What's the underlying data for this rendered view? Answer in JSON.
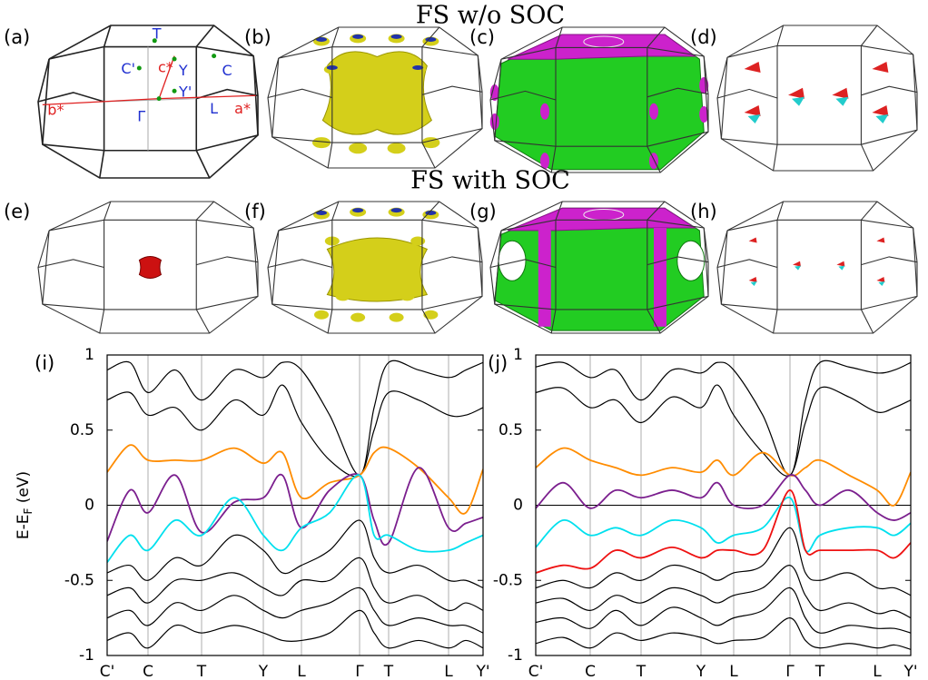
{
  "figure": {
    "titles": [
      "FS w/o SOC",
      "FS with SOC"
    ],
    "panel_labels": [
      "(a)",
      "(b)",
      "(c)",
      "(d)",
      "(e)",
      "(f)",
      "(g)",
      "(h)"
    ],
    "bz_labels": [
      "T",
      "C'",
      "c*",
      "Y",
      "C",
      "b*",
      "Y'",
      "Γ",
      "L",
      "a*"
    ]
  },
  "chart_data": [
    {
      "type": "line",
      "label": "(i)",
      "y_label": [
        "E-E",
        "F",
        " (eV)"
      ],
      "xlim": [
        0,
        4.14
      ],
      "ylim": [
        -1,
        1
      ],
      "xticks": [
        {
          "value": 0,
          "label": "C'"
        },
        {
          "value": 0.45,
          "label": "C"
        },
        {
          "value": 1.04,
          "label": "T"
        },
        {
          "value": 1.72,
          "label": "Y"
        },
        {
          "value": 2.14,
          "label": "L"
        },
        {
          "value": 2.78,
          "label": "Γ"
        },
        {
          "value": 3.1,
          "label": "T"
        },
        {
          "value": 3.76,
          "label": "L"
        },
        {
          "value": 4.14,
          "label": "Y'"
        }
      ],
      "yticks": [
        1,
        0.5,
        0,
        -0.5,
        -1
      ],
      "x": [
        0,
        0.25,
        0.45,
        0.75,
        1.04,
        1.4,
        1.72,
        1.93,
        2.14,
        2.45,
        2.78,
        2.94,
        3.1,
        3.43,
        3.76,
        3.95,
        4.14
      ],
      "series": [
        {
          "color": "#000000",
          "values": [
            0.9,
            0.95,
            0.75,
            0.9,
            0.7,
            0.9,
            0.85,
            0.95,
            0.9,
            0.6,
            0.2,
            0.65,
            0.95,
            0.9,
            0.85,
            0.9,
            0.95
          ]
        },
        {
          "color": "#000000",
          "values": [
            0.7,
            0.75,
            0.6,
            0.65,
            0.5,
            0.7,
            0.6,
            0.8,
            0.55,
            0.3,
            0.2,
            0.5,
            0.75,
            0.7,
            0.6,
            0.6,
            0.65
          ]
        },
        {
          "color": "#000000",
          "values": [
            -0.45,
            -0.4,
            -0.5,
            -0.35,
            -0.4,
            -0.2,
            -0.3,
            -0.45,
            -0.4,
            -0.3,
            -0.1,
            -0.35,
            -0.45,
            -0.4,
            -0.5,
            -0.5,
            -0.55
          ]
        },
        {
          "color": "#000000",
          "values": [
            -0.6,
            -0.55,
            -0.65,
            -0.5,
            -0.5,
            -0.45,
            -0.55,
            -0.6,
            -0.5,
            -0.5,
            -0.35,
            -0.55,
            -0.65,
            -0.6,
            -0.7,
            -0.65,
            -0.7
          ]
        },
        {
          "color": "#000000",
          "values": [
            -0.75,
            -0.7,
            -0.8,
            -0.65,
            -0.7,
            -0.6,
            -0.7,
            -0.75,
            -0.7,
            -0.65,
            -0.55,
            -0.7,
            -0.8,
            -0.75,
            -0.8,
            -0.8,
            -0.85
          ]
        },
        {
          "color": "#000000",
          "values": [
            -0.9,
            -0.85,
            -0.95,
            -0.8,
            -0.85,
            -0.8,
            -0.85,
            -0.9,
            -0.9,
            -0.85,
            -0.7,
            -0.85,
            -0.95,
            -0.9,
            -0.95,
            -0.9,
            -0.95
          ]
        },
        {
          "color": "#ff8c00",
          "values": [
            0.22,
            0.4,
            0.3,
            0.3,
            0.3,
            0.38,
            0.28,
            0.35,
            0.05,
            0.15,
            0.2,
            0.35,
            0.38,
            0.25,
            0.05,
            -0.05,
            0.24
          ]
        },
        {
          "color": "#7b1f8e",
          "values": [
            -0.24,
            0.1,
            -0.05,
            0.2,
            -0.18,
            0.02,
            0.05,
            0.2,
            -0.15,
            0.1,
            0.2,
            -0.1,
            -0.25,
            0.25,
            -0.15,
            -0.12,
            -0.08
          ]
        },
        {
          "color": "#00e0ee",
          "values": [
            -0.38,
            -0.2,
            -0.3,
            -0.1,
            -0.2,
            0.05,
            -0.2,
            -0.3,
            -0.15,
            -0.05,
            0.2,
            -0.2,
            -0.2,
            -0.3,
            -0.3,
            -0.25,
            -0.2
          ]
        }
      ]
    },
    {
      "type": "line",
      "label": "(j)",
      "xlim": [
        0,
        4.13
      ],
      "ylim": [
        -1,
        1
      ],
      "xticks": [
        {
          "value": 0,
          "label": "C'"
        },
        {
          "value": 0.6,
          "label": "C"
        },
        {
          "value": 1.16,
          "label": "T"
        },
        {
          "value": 1.82,
          "label": "Y"
        },
        {
          "value": 2.18,
          "label": "L"
        },
        {
          "value": 2.8,
          "label": "Γ"
        },
        {
          "value": 3.13,
          "label": "T"
        },
        {
          "value": 3.76,
          "label": "L"
        },
        {
          "value": 4.13,
          "label": "Y'"
        }
      ],
      "yticks": [
        1,
        0.5,
        0,
        -0.5,
        -1
      ],
      "x": [
        0,
        0.3,
        0.6,
        0.88,
        1.16,
        1.5,
        1.82,
        2.0,
        2.18,
        2.5,
        2.8,
        2.97,
        3.13,
        3.45,
        3.76,
        3.95,
        4.13
      ],
      "series": [
        {
          "color": "#000000",
          "values": [
            0.92,
            0.95,
            0.85,
            0.9,
            0.7,
            0.9,
            0.88,
            0.95,
            0.9,
            0.6,
            0.2,
            0.7,
            0.95,
            0.92,
            0.88,
            0.9,
            0.95
          ]
        },
        {
          "color": "#000000",
          "values": [
            0.75,
            0.78,
            0.65,
            0.7,
            0.55,
            0.72,
            0.65,
            0.8,
            0.6,
            0.35,
            0.2,
            0.55,
            0.78,
            0.72,
            0.62,
            0.65,
            0.7
          ]
        },
        {
          "color": "#000000",
          "values": [
            -0.55,
            -0.5,
            -0.55,
            -0.45,
            -0.5,
            -0.4,
            -0.45,
            -0.5,
            -0.45,
            -0.4,
            -0.15,
            -0.45,
            -0.5,
            -0.45,
            -0.55,
            -0.55,
            -0.6
          ]
        },
        {
          "color": "#000000",
          "values": [
            -0.65,
            -0.62,
            -0.7,
            -0.6,
            -0.65,
            -0.55,
            -0.6,
            -0.65,
            -0.6,
            -0.55,
            -0.4,
            -0.6,
            -0.7,
            -0.65,
            -0.72,
            -0.7,
            -0.75
          ]
        },
        {
          "color": "#000000",
          "values": [
            -0.78,
            -0.75,
            -0.82,
            -0.7,
            -0.8,
            -0.68,
            -0.75,
            -0.8,
            -0.75,
            -0.7,
            -0.55,
            -0.75,
            -0.85,
            -0.8,
            -0.82,
            -0.82,
            -0.85
          ]
        },
        {
          "color": "#000000",
          "values": [
            -0.92,
            -0.88,
            -0.95,
            -0.85,
            -0.9,
            -0.85,
            -0.88,
            -0.92,
            -0.9,
            -0.88,
            -0.75,
            -0.9,
            -0.95,
            -0.92,
            -0.95,
            -0.93,
            -0.96
          ]
        },
        {
          "color": "#ff8c00",
          "values": [
            0.25,
            0.38,
            0.3,
            0.25,
            0.2,
            0.25,
            0.22,
            0.3,
            0.2,
            0.35,
            0.2,
            0.25,
            0.3,
            0.2,
            0.1,
            0.0,
            0.22
          ]
        },
        {
          "color": "#7b1f8e",
          "values": [
            -0.02,
            0.15,
            -0.02,
            0.1,
            0.05,
            0.1,
            0.05,
            0.15,
            0.0,
            0.0,
            0.2,
            0.1,
            0.0,
            0.1,
            -0.05,
            -0.1,
            -0.05
          ]
        },
        {
          "color": "#00e0ee",
          "values": [
            -0.28,
            -0.1,
            -0.2,
            -0.15,
            -0.2,
            -0.1,
            -0.15,
            -0.25,
            -0.2,
            -0.15,
            0.05,
            -0.3,
            -0.2,
            -0.15,
            -0.15,
            -0.2,
            -0.12
          ]
        },
        {
          "color": "#ee1111",
          "values": [
            -0.45,
            -0.4,
            -0.42,
            -0.3,
            -0.35,
            -0.28,
            -0.35,
            -0.3,
            -0.3,
            -0.3,
            0.1,
            -0.3,
            -0.3,
            -0.3,
            -0.3,
            -0.35,
            -0.25
          ]
        }
      ]
    }
  ]
}
